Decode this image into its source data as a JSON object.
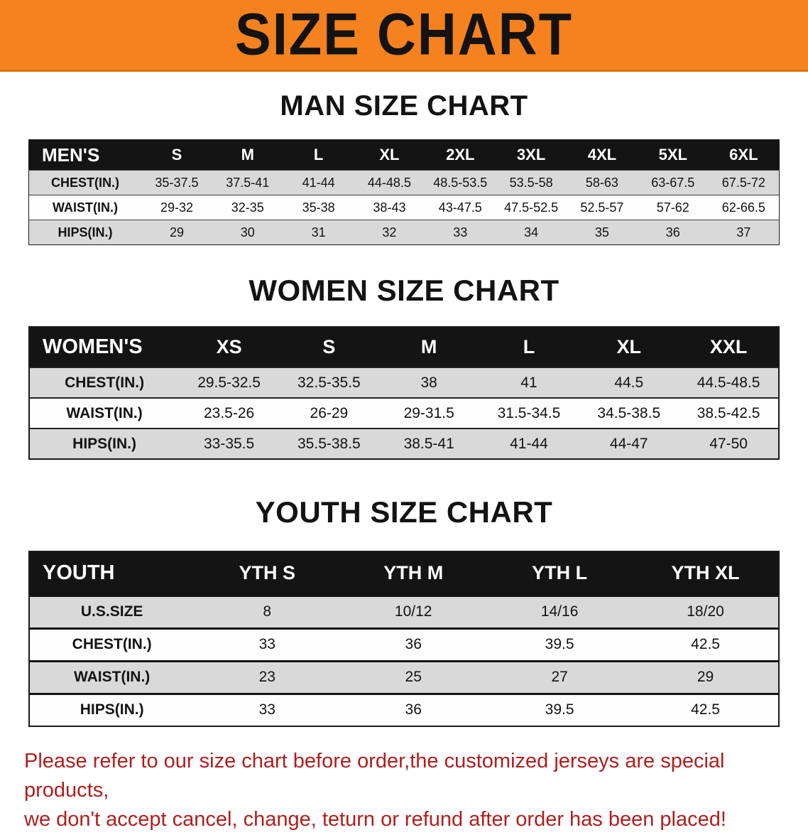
{
  "banner": {
    "title": "SIZE CHART"
  },
  "colors": {
    "banner_bg": "#F5821F",
    "header_bg": "#141414",
    "row_alt": "#D9D9D9",
    "disclaimer": "#B01E1E"
  },
  "sections": [
    {
      "id": "men",
      "heading": "MAN SIZE CHART",
      "table": {
        "header": [
          "MEN'S",
          "S",
          "M",
          "L",
          "XL",
          "2XL",
          "3XL",
          "4XL",
          "5XL",
          "6XL"
        ],
        "rows": [
          [
            "CHEST(IN.)",
            "35-37.5",
            "37.5-41",
            "41-44",
            "44-48.5",
            "48.5-53.5",
            "53.5-58",
            "58-63",
            "63-67.5",
            "67.5-72"
          ],
          [
            "WAIST(IN.)",
            "29-32",
            "32-35",
            "35-38",
            "38-43",
            "43-47.5",
            "47.5-52.5",
            "52.5-57",
            "57-62",
            "62-66.5"
          ],
          [
            "HIPS(IN.)",
            "29",
            "30",
            "31",
            "32",
            "33",
            "34",
            "35",
            "36",
            "37"
          ]
        ]
      }
    },
    {
      "id": "women",
      "heading": "WOMEN SIZE CHART",
      "table": {
        "header": [
          "WOMEN'S",
          "XS",
          "S",
          "M",
          "L",
          "XL",
          "XXL"
        ],
        "rows": [
          [
            "CHEST(IN.)",
            "29.5-32.5",
            "32.5-35.5",
            "38",
            "41",
            "44.5",
            "44.5-48.5"
          ],
          [
            "WAIST(IN.)",
            "23.5-26",
            "26-29",
            "29-31.5",
            "31.5-34.5",
            "34.5-38.5",
            "38.5-42.5"
          ],
          [
            "HIPS(IN.)",
            "33-35.5",
            "35.5-38.5",
            "38.5-41",
            "41-44",
            "44-47",
            "47-50"
          ]
        ]
      }
    },
    {
      "id": "youth",
      "heading": "YOUTH SIZE CHART",
      "table": {
        "header": [
          "YOUTH",
          "YTH S",
          "YTH M",
          "YTH L",
          "YTH XL"
        ],
        "rows": [
          [
            "U.S.SIZE",
            "8",
            "10/12",
            "14/16",
            "18/20"
          ],
          [
            "CHEST(IN.)",
            "33",
            "36",
            "39.5",
            "42.5"
          ],
          [
            "WAIST(IN.)",
            "23",
            "25",
            "27",
            "29"
          ],
          [
            "HIPS(IN.)",
            "33",
            "36",
            "39.5",
            "42.5"
          ]
        ]
      }
    }
  ],
  "disclaimer": {
    "line1": "Please refer to our size chart before order,the customized jerseys are special products,",
    "line2": "we don't accept cancel, change, teturn or refund after order has been placed!"
  }
}
